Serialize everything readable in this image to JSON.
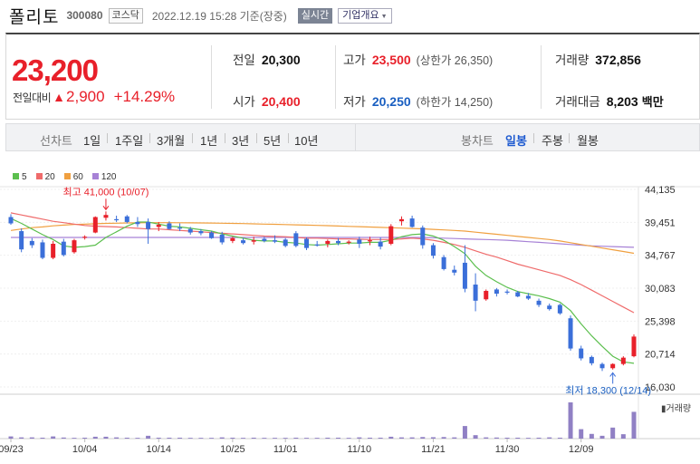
{
  "header": {
    "name": "폴리토",
    "code": "300080",
    "market": "코스닥",
    "datetime": "2022.12.19 15:28 기준(장중)",
    "realtime": "실시간",
    "company_info": "기업개요"
  },
  "price": {
    "current": "23,200",
    "change_label": "전일대비",
    "change": "2,900",
    "change_pct": "+14.29%"
  },
  "stats": {
    "prev_label": "전일",
    "prev": "20,300",
    "open_label": "시가",
    "open": "20,400",
    "high_label": "고가",
    "high": "23,500",
    "upper_limit": "(상한가 26,350)",
    "low_label": "저가",
    "low": "20,250",
    "lower_limit": "(하한가 14,250)",
    "volume_label": "거래량",
    "volume": "372,856",
    "amount_label": "거래대금",
    "amount": "8,203",
    "amount_unit": "백만"
  },
  "tabs": {
    "line_label": "선차트",
    "line": [
      "1일",
      "1주일",
      "3개월",
      "1년",
      "3년",
      "5년",
      "10년"
    ],
    "candle_label": "봉차트",
    "candle": [
      "일봉",
      "주봉",
      "월봉"
    ],
    "candle_active": "일봉"
  },
  "colors": {
    "up": "#e8202a",
    "down": "#3b6fd9",
    "ma5": "#5cbf4e",
    "ma20": "#ef6b6b",
    "ma60": "#f0a040",
    "ma120": "#a782d6",
    "volume": "#9080c4"
  },
  "chart_data": {
    "type": "candlestick",
    "legend": [
      "5",
      "20",
      "60",
      "120"
    ],
    "y_ticks": [
      "44,135",
      "39,451",
      "34,767",
      "30,083",
      "25,398",
      "20,714",
      "16,030"
    ],
    "y_tick_values": [
      44135,
      39451,
      34767,
      30083,
      25398,
      20714,
      16030
    ],
    "x_labels": [
      "09/23",
      "10/04",
      "10/14",
      "10/25",
      "11/01",
      "11/10",
      "11/21",
      "11/30",
      "12/09"
    ],
    "x_label_index": [
      0,
      7,
      14,
      21,
      26,
      33,
      40,
      47,
      54
    ],
    "high_note": "최고 41,000 (10/07)",
    "high_note_index": 9,
    "high_note_value": 41000,
    "low_note": "최저 18,300 (12/14)",
    "low_note_index": 57,
    "low_note_value": 18300,
    "volume_label": "거래량",
    "candles": [
      {
        "o": 40200,
        "h": 40600,
        "l": 39100,
        "c": 39300
      },
      {
        "o": 38200,
        "h": 38600,
        "l": 35200,
        "c": 35600
      },
      {
        "o": 36800,
        "h": 37200,
        "l": 35800,
        "c": 36200
      },
      {
        "o": 36600,
        "h": 37000,
        "l": 34200,
        "c": 34400
      },
      {
        "o": 34400,
        "h": 36800,
        "l": 34200,
        "c": 36400
      },
      {
        "o": 36700,
        "h": 37100,
        "l": 34600,
        "c": 34800
      },
      {
        "o": 35200,
        "h": 37100,
        "l": 35000,
        "c": 36900
      },
      {
        "o": 37300,
        "h": 37600,
        "l": 37000,
        "c": 37400
      },
      {
        "o": 38000,
        "h": 40300,
        "l": 37900,
        "c": 40200
      },
      {
        "o": 40100,
        "h": 41000,
        "l": 39700,
        "c": 40500
      },
      {
        "o": 39900,
        "h": 40400,
        "l": 39500,
        "c": 39800
      },
      {
        "o": 40300,
        "h": 40500,
        "l": 39300,
        "c": 39500
      },
      {
        "o": 39500,
        "h": 40200,
        "l": 38800,
        "c": 39200
      },
      {
        "o": 39500,
        "h": 40000,
        "l": 36400,
        "c": 38500
      },
      {
        "o": 38800,
        "h": 39500,
        "l": 38200,
        "c": 39100
      },
      {
        "o": 39300,
        "h": 39600,
        "l": 38400,
        "c": 38500
      },
      {
        "o": 38700,
        "h": 39300,
        "l": 38200,
        "c": 38600
      },
      {
        "o": 38500,
        "h": 38800,
        "l": 37700,
        "c": 38000
      },
      {
        "o": 38200,
        "h": 38500,
        "l": 37600,
        "c": 37900
      },
      {
        "o": 38000,
        "h": 38200,
        "l": 37100,
        "c": 37200
      },
      {
        "o": 37700,
        "h": 38100,
        "l": 36300,
        "c": 36600
      },
      {
        "o": 36800,
        "h": 37400,
        "l": 36500,
        "c": 37200
      },
      {
        "o": 36900,
        "h": 37200,
        "l": 36300,
        "c": 36500
      },
      {
        "o": 36700,
        "h": 37400,
        "l": 36300,
        "c": 36900
      },
      {
        "o": 37100,
        "h": 37400,
        "l": 36600,
        "c": 36800
      },
      {
        "o": 36900,
        "h": 37600,
        "l": 36500,
        "c": 36700
      },
      {
        "o": 37000,
        "h": 37200,
        "l": 35900,
        "c": 36100
      },
      {
        "o": 37900,
        "h": 38200,
        "l": 35900,
        "c": 36100
      },
      {
        "o": 37100,
        "h": 37300,
        "l": 35500,
        "c": 35800
      },
      {
        "o": 36300,
        "h": 36800,
        "l": 36000,
        "c": 36200
      },
      {
        "o": 36400,
        "h": 37000,
        "l": 35900,
        "c": 36800
      },
      {
        "o": 36800,
        "h": 37200,
        "l": 36200,
        "c": 36500
      },
      {
        "o": 36600,
        "h": 36900,
        "l": 36300,
        "c": 36700
      },
      {
        "o": 37000,
        "h": 37400,
        "l": 35800,
        "c": 36400
      },
      {
        "o": 36800,
        "h": 37400,
        "l": 36200,
        "c": 36900
      },
      {
        "o": 36700,
        "h": 37300,
        "l": 35600,
        "c": 36000
      },
      {
        "o": 36400,
        "h": 39200,
        "l": 36200,
        "c": 38900
      },
      {
        "o": 39600,
        "h": 40300,
        "l": 39000,
        "c": 39900
      },
      {
        "o": 40000,
        "h": 40400,
        "l": 38700,
        "c": 38800
      },
      {
        "o": 38700,
        "h": 39000,
        "l": 35700,
        "c": 36200
      },
      {
        "o": 36200,
        "h": 36500,
        "l": 34300,
        "c": 34700
      },
      {
        "o": 34500,
        "h": 34800,
        "l": 32600,
        "c": 32800
      },
      {
        "o": 32700,
        "h": 33300,
        "l": 31900,
        "c": 32300
      },
      {
        "o": 33700,
        "h": 36200,
        "l": 29500,
        "c": 30000
      },
      {
        "o": 30600,
        "h": 32200,
        "l": 26800,
        "c": 28300
      },
      {
        "o": 28500,
        "h": 29900,
        "l": 28300,
        "c": 29700
      },
      {
        "o": 29900,
        "h": 30100,
        "l": 28900,
        "c": 29300
      },
      {
        "o": 29600,
        "h": 29900,
        "l": 29200,
        "c": 29500
      },
      {
        "o": 29500,
        "h": 29700,
        "l": 28800,
        "c": 28900
      },
      {
        "o": 29000,
        "h": 29400,
        "l": 28400,
        "c": 28600
      },
      {
        "o": 28300,
        "h": 28600,
        "l": 27400,
        "c": 27700
      },
      {
        "o": 27600,
        "h": 27900,
        "l": 26900,
        "c": 27100
      },
      {
        "o": 27700,
        "h": 27900,
        "l": 26300,
        "c": 26500
      },
      {
        "o": 25800,
        "h": 26200,
        "l": 21200,
        "c": 21500
      },
      {
        "o": 21500,
        "h": 21900,
        "l": 19800,
        "c": 20100
      },
      {
        "o": 20300,
        "h": 20500,
        "l": 19100,
        "c": 19400
      },
      {
        "o": 19300,
        "h": 19500,
        "l": 18300,
        "c": 18700
      },
      {
        "o": 18700,
        "h": 19400,
        "l": 18500,
        "c": 19300
      },
      {
        "o": 19300,
        "h": 20400,
        "l": 19100,
        "c": 20200
      },
      {
        "o": 20400,
        "h": 23500,
        "l": 20250,
        "c": 23200
      }
    ],
    "volumes": [
      14,
      8,
      8,
      6,
      14,
      7,
      5,
      6,
      12,
      12,
      8,
      6,
      5,
      18,
      6,
      6,
      6,
      5,
      5,
      5,
      8,
      6,
      5,
      6,
      5,
      5,
      5,
      6,
      5,
      5,
      6,
      6,
      5,
      8,
      6,
      6,
      12,
      8,
      8,
      10,
      9,
      10,
      8,
      80,
      22,
      8,
      7,
      6,
      6,
      5,
      6,
      8,
      6,
      230,
      60,
      30,
      18,
      70,
      28,
      170
    ],
    "ma5": [
      40000,
      39300,
      38500,
      37700,
      37000,
      36100,
      35900,
      36000,
      36200,
      37300,
      38100,
      38900,
      39500,
      39500,
      39200,
      38900,
      38800,
      38600,
      38400,
      38200,
      37800,
      37500,
      37200,
      36900,
      36800,
      36800,
      36600,
      36500,
      36300,
      36200,
      36300,
      36400,
      36500,
      36500,
      36600,
      36600,
      36900,
      37400,
      37700,
      37800,
      37500,
      36900,
      36000,
      35000,
      33200,
      31900,
      31000,
      30200,
      29600,
      29300,
      29000,
      28600,
      28100,
      26900,
      25000,
      23300,
      21800,
      20400,
      19600,
      19400
    ],
    "ma20": [
      40800,
      40500,
      40200,
      39900,
      39600,
      39400,
      39200,
      39000,
      38900,
      38850,
      38800,
      38700,
      38600,
      38500,
      38500,
      38400,
      38300,
      38200,
      38100,
      38000,
      37900,
      37800,
      37700,
      37600,
      37500,
      37450,
      37400,
      37300,
      37200,
      37200,
      37150,
      37100,
      37100,
      37050,
      37000,
      37000,
      37000,
      37100,
      37200,
      37100,
      36900,
      36600,
      36300,
      35900,
      35400,
      34900,
      34500,
      34000,
      33500,
      33100,
      32700,
      32300,
      31900,
      31300,
      30600,
      29800,
      29000,
      28200,
      27400,
      26600
    ],
    "ma60": [
      38300,
      38500,
      38700,
      38800,
      38950,
      39050,
      39150,
      39200,
      39250,
      39300,
      39330,
      39360,
      39380,
      39400,
      39400,
      39400,
      39390,
      39380,
      39370,
      39350,
      39320,
      39300,
      39270,
      39240,
      39200,
      39170,
      39130,
      39100,
      39060,
      39020,
      38980,
      38930,
      38880,
      38830,
      38780,
      38730,
      38680,
      38630,
      38580,
      38530,
      38450,
      38370,
      38290,
      38200,
      38050,
      37900,
      37750,
      37600,
      37450,
      37300,
      37150,
      37000,
      36800,
      36550,
      36300,
      36050,
      35800,
      35550,
      35300,
      35050
    ],
    "ma120": [
      37300,
      37300,
      37300,
      37300,
      37300,
      37300,
      37300,
      37300,
      37300,
      37300,
      37300,
      37300,
      37300,
      37300,
      37300,
      37300,
      37300,
      37300,
      37300,
      37300,
      37300,
      37300,
      37300,
      37300,
      37300,
      37300,
      37300,
      37300,
      37300,
      37300,
      37300,
      37300,
      37300,
      37300,
      37300,
      37300,
      37300,
      37300,
      37300,
      37300,
      37250,
      37200,
      37150,
      37100,
      37050,
      37000,
      36950,
      36900,
      36800,
      36700,
      36600,
      36500,
      36400,
      36300,
      36200,
      36100,
      36050,
      36000,
      35950,
      35900
    ]
  }
}
